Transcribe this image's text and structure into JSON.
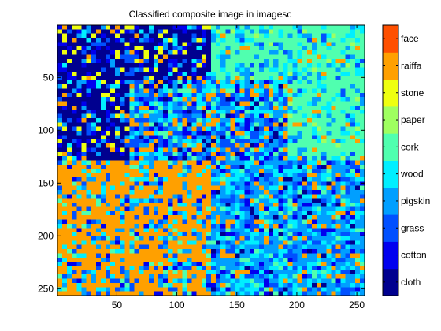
{
  "chart_data": {
    "type": "heatmap",
    "title": "Classified composite image in imagesc",
    "xlabel": "",
    "ylabel": "",
    "x_range": [
      1,
      256
    ],
    "y_range": [
      1,
      256
    ],
    "x_ticks": [
      50,
      100,
      150,
      200,
      250
    ],
    "y_ticks": [
      50,
      100,
      150,
      200,
      250
    ],
    "colorbar": {
      "position": "right",
      "classes": [
        {
          "label": "cloth",
          "color": "#00008f"
        },
        {
          "label": "cotton",
          "color": "#0000ef"
        },
        {
          "label": "grass",
          "color": "#0050ff"
        },
        {
          "label": "pigskin",
          "color": "#009fff"
        },
        {
          "label": "wood",
          "color": "#00efff"
        },
        {
          "label": "cork",
          "color": "#50ffaf"
        },
        {
          "label": "paper",
          "color": "#9fff60"
        },
        {
          "label": "stone",
          "color": "#efff10"
        },
        {
          "label": "raiffa",
          "color": "#ffa000"
        },
        {
          "label": "face",
          "color": "#ff5000"
        }
      ]
    },
    "regions": [
      {
        "name": "top-left",
        "rows": [
          1,
          128
        ],
        "cols": [
          1,
          128
        ],
        "dominant": "cloth",
        "mix": {
          "cloth": 0.55,
          "cotton": 0.12,
          "grass": 0.08,
          "stone": 0.1,
          "pigskin": 0.07,
          "wood": 0.04,
          "raiffa": 0.04
        }
      },
      {
        "name": "top-right",
        "rows": [
          1,
          128
        ],
        "cols": [
          129,
          256
        ],
        "dominant": "cork",
        "mix": {
          "cork": 0.62,
          "wood": 0.16,
          "pigskin": 0.1,
          "grass": 0.05,
          "raiffa": 0.04,
          "paper": 0.03
        }
      },
      {
        "name": "center",
        "rows": [
          50,
          190
        ],
        "cols": [
          60,
          190
        ],
        "dominant": "grass",
        "mix": {
          "grass": 0.22,
          "pigskin": 0.2,
          "raiffa": 0.18,
          "wood": 0.14,
          "cork": 0.1,
          "cotton": 0.1,
          "cloth": 0.06
        }
      },
      {
        "name": "bottom-left",
        "rows": [
          129,
          256
        ],
        "cols": [
          1,
          128
        ],
        "dominant": "raiffa",
        "mix": {
          "raiffa": 0.58,
          "wood": 0.12,
          "pigskin": 0.1,
          "grass": 0.1,
          "cork": 0.06,
          "cotton": 0.04
        }
      },
      {
        "name": "bottom-right",
        "rows": [
          129,
          256
        ],
        "cols": [
          129,
          256
        ],
        "dominant": "pigskin",
        "mix": {
          "pigskin": 0.35,
          "wood": 0.2,
          "grass": 0.15,
          "raiffa": 0.12,
          "cotton": 0.08,
          "cork": 0.06,
          "cloth": 0.04
        }
      }
    ]
  }
}
